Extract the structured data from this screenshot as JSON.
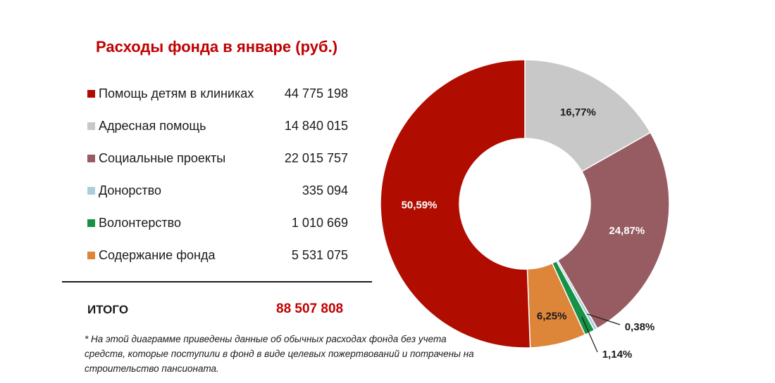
{
  "chart_data": {
    "type": "pie",
    "title": "Расходы фонда в январе (руб.)",
    "categories": [
      "Помощь детям в клиниках",
      "Адресная помощь",
      "Социальные проекты",
      "Донорство",
      "Волонтерство",
      "Содержание фонда"
    ],
    "values": [
      44775198,
      14840015,
      22015757,
      335094,
      1010669,
      5531075
    ],
    "value_labels": [
      "44 775 198",
      "14 840 015",
      "22 015 757",
      "335 094",
      "1 010 669",
      "5 531 075"
    ],
    "percent_labels": [
      "50,59%",
      "16,77%",
      "24,87%",
      "0,38%",
      "1,14%",
      "6,25%"
    ],
    "colors": [
      "#b00c00",
      "#c8c8c8",
      "#975c62",
      "#a7d0dd",
      "#179146",
      "#dd8539"
    ],
    "donut": true,
    "legend_position": "left"
  },
  "total": {
    "label": "ИТОГО",
    "value": "88 507 808"
  },
  "footnote": "* На этой диаграмме приведены данные об обычных расходах фонда без учета средств, которые поступили в фонд в виде целевых пожертвований и потрачены на строительство пансионата."
}
